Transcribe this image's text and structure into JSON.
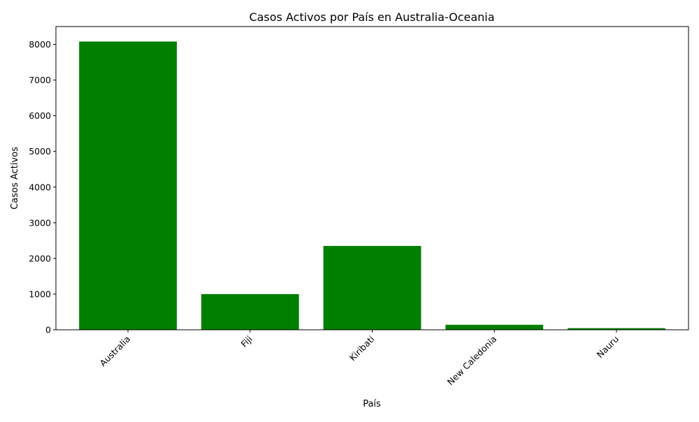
{
  "chart_data": {
    "type": "bar",
    "title": "Casos Activos por País en Australia-Oceania",
    "xlabel": "País",
    "ylabel": "Casos Activos",
    "categories": [
      "Australia",
      "Fiji",
      "Kiribati",
      "New Caledonia",
      "Nauru"
    ],
    "values": [
      8080,
      1000,
      2350,
      140,
      45
    ],
    "ylim": [
      0,
      8500
    ],
    "yticks": [
      0,
      1000,
      2000,
      3000,
      4000,
      5000,
      6000,
      7000,
      8000
    ],
    "xtick_rotation": 45,
    "bar_color": "#008000",
    "grid": false,
    "legend": false
  }
}
